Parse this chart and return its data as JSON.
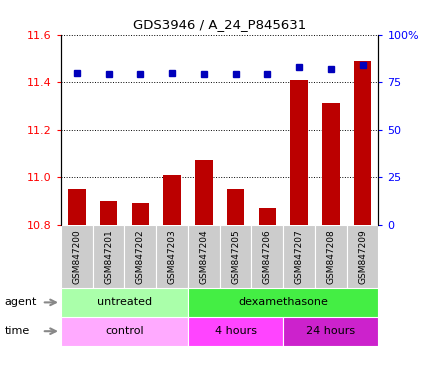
{
  "title": "GDS3946 / A_24_P845631",
  "samples": [
    "GSM847200",
    "GSM847201",
    "GSM847202",
    "GSM847203",
    "GSM847204",
    "GSM847205",
    "GSM847206",
    "GSM847207",
    "GSM847208",
    "GSM847209"
  ],
  "transformed_count": [
    10.95,
    10.9,
    10.89,
    11.01,
    11.07,
    10.95,
    10.87,
    11.41,
    11.31,
    11.49
  ],
  "percentile_rank": [
    80,
    79,
    79,
    80,
    79,
    79,
    79,
    83,
    82,
    84
  ],
  "ylim_left": [
    10.8,
    11.6
  ],
  "ylim_right": [
    0,
    100
  ],
  "yticks_left": [
    10.8,
    11.0,
    11.2,
    11.4,
    11.6
  ],
  "yticks_right": [
    0,
    25,
    50,
    75,
    100
  ],
  "ytick_right_labels": [
    "0",
    "25",
    "50",
    "75",
    "100%"
  ],
  "bar_color": "#bb0000",
  "dot_color": "#0000bb",
  "agent_groups": [
    {
      "label": "untreated",
      "start": 0,
      "end": 4,
      "color": "#aaffaa"
    },
    {
      "label": "dexamethasone",
      "start": 4,
      "end": 10,
      "color": "#44ee44"
    }
  ],
  "time_groups": [
    {
      "label": "control",
      "start": 0,
      "end": 4,
      "color": "#ffaaff"
    },
    {
      "label": "4 hours",
      "start": 4,
      "end": 7,
      "color": "#ff44ff"
    },
    {
      "label": "24 hours",
      "start": 7,
      "end": 10,
      "color": "#cc22cc"
    }
  ],
  "label_bg": "#cccccc",
  "fig_width": 4.35,
  "fig_height": 3.84,
  "dpi": 100
}
